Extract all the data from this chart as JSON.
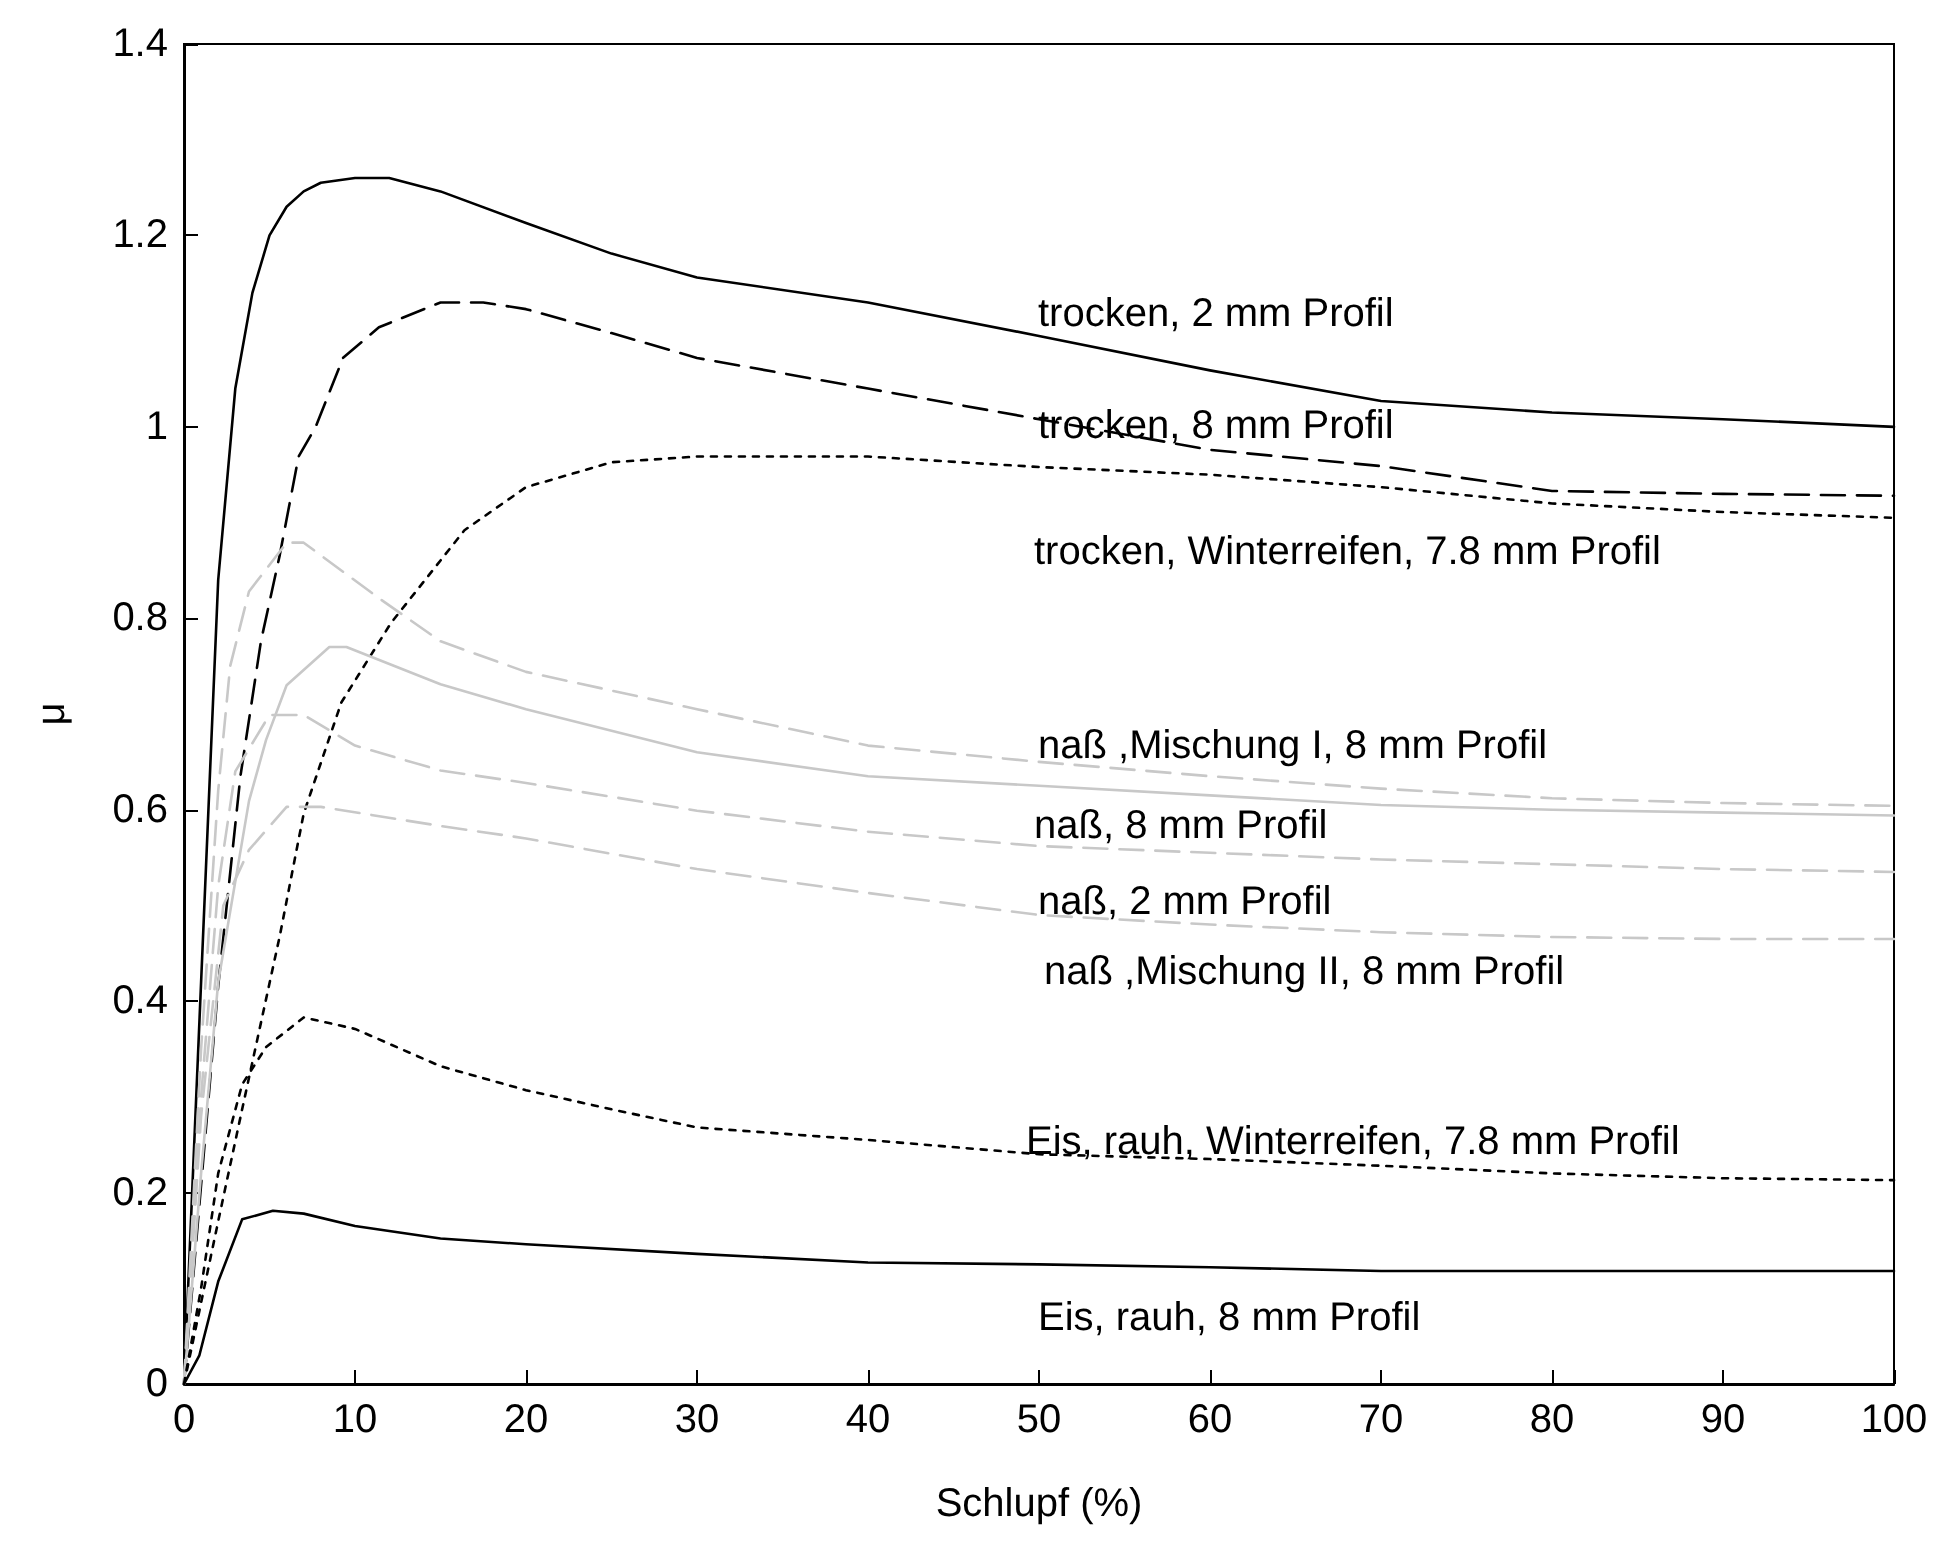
{
  "chart_data": {
    "type": "line",
    "xlabel": "Schlupf (%)",
    "ylabel": "μ",
    "xlim": [
      0,
      100
    ],
    "xticks": [
      0,
      10,
      20,
      30,
      40,
      50,
      60,
      70,
      80,
      90,
      100
    ],
    "ylim": [
      0,
      1.4
    ],
    "yticks": [
      0,
      0.2,
      0.4,
      0.6,
      0.8,
      1,
      1.2,
      1.4
    ],
    "grid": false,
    "marker": "none",
    "series": [
      {
        "color": "#000000",
        "line_style": "solid",
        "x": [
          0,
          1,
          2,
          3,
          4,
          5,
          6,
          7,
          8,
          10,
          12,
          15,
          20,
          25,
          30,
          40,
          50,
          60,
          70,
          80,
          90,
          100
        ],
        "values": [
          0,
          0.42,
          0.84,
          1.04,
          1.14,
          1.2,
          1.23,
          1.246,
          1.255,
          1.26,
          1.26,
          1.246,
          1.213,
          1.181,
          1.156,
          1.13,
          1.095,
          1.059,
          1.027,
          1.015,
          1.008,
          1.0
        ]
      },
      {
        "color": "#000000",
        "line_style": "dashed",
        "x": [
          0,
          2,
          3.3,
          4.5,
          5.6,
          6.7,
          7.7,
          9.3,
          11.4,
          15,
          17.5,
          20,
          25,
          30,
          40,
          50,
          60,
          70,
          80,
          90,
          100
        ],
        "values": [
          0,
          0.416,
          0.635,
          0.776,
          0.866,
          0.969,
          1.0,
          1.072,
          1.104,
          1.13,
          1.13,
          1.123,
          1.098,
          1.072,
          1.04,
          1.008,
          0.976,
          0.959,
          0.933,
          0.93,
          0.928
        ]
      },
      {
        "color": "#000000",
        "line_style": "dotted",
        "x": [
          0,
          2,
          3.4,
          5.6,
          7,
          9.2,
          12.1,
          16.4,
          20,
          25,
          30,
          40,
          50,
          60,
          70,
          80,
          90,
          100
        ],
        "values": [
          0,
          0.17,
          0.287,
          0.468,
          0.596,
          0.712,
          0.795,
          0.892,
          0.937,
          0.963,
          0.969,
          0.969,
          0.958,
          0.95,
          0.937,
          0.92,
          0.911,
          0.905
        ]
      },
      {
        "color": "#c8c8c8",
        "line_style": "dashed",
        "x": [
          0,
          1,
          2,
          2.7,
          3.8,
          6,
          7,
          11.4,
          15,
          20,
          30,
          40,
          50,
          60,
          70,
          80,
          90,
          100
        ],
        "values": [
          0,
          0.35,
          0.62,
          0.75,
          0.828,
          0.879,
          0.879,
          0.821,
          0.776,
          0.744,
          0.705,
          0.667,
          0.65,
          0.635,
          0.622,
          0.612,
          0.607,
          0.604
        ]
      },
      {
        "color": "#c8c8c8",
        "line_style": "solid",
        "x": [
          0,
          1,
          2,
          3.8,
          4.8,
          6,
          8.5,
          9.5,
          15,
          20,
          30,
          40,
          50,
          60,
          70,
          80,
          90,
          100
        ],
        "values": [
          0,
          0.22,
          0.42,
          0.609,
          0.673,
          0.73,
          0.77,
          0.77,
          0.731,
          0.705,
          0.66,
          0.635,
          0.625,
          0.615,
          0.605,
          0.6,
          0.597,
          0.594
        ]
      },
      {
        "color": "#c8c8c8",
        "line_style": "dashed",
        "x": [
          0,
          1,
          2,
          3,
          5,
          7,
          10,
          15,
          20,
          30,
          40,
          50,
          60,
          70,
          80,
          90,
          100
        ],
        "values": [
          0,
          0.3,
          0.52,
          0.64,
          0.699,
          0.699,
          0.667,
          0.641,
          0.628,
          0.599,
          0.577,
          0.562,
          0.555,
          0.548,
          0.543,
          0.538,
          0.535
        ]
      },
      {
        "color": "#c8c8c8",
        "line_style": "dashed",
        "x": [
          0,
          1,
          2.3,
          3.8,
          6,
          8,
          15,
          20,
          30,
          40,
          50,
          60,
          70,
          80,
          90,
          100
        ],
        "values": [
          0,
          0.28,
          0.5,
          0.558,
          0.603,
          0.603,
          0.583,
          0.57,
          0.538,
          0.513,
          0.49,
          0.48,
          0.472,
          0.467,
          0.465,
          0.465
        ]
      },
      {
        "color": "#000000",
        "line_style": "dotted",
        "x": [
          0,
          1,
          2,
          3.4,
          4.8,
          7,
          10,
          15,
          20,
          25,
          30,
          40,
          50,
          60,
          70,
          80,
          90,
          100
        ],
        "values": [
          0,
          0.1,
          0.22,
          0.313,
          0.352,
          0.383,
          0.371,
          0.332,
          0.307,
          0.287,
          0.268,
          0.255,
          0.24,
          0.235,
          0.228,
          0.22,
          0.215,
          0.213
        ]
      },
      {
        "color": "#000000",
        "line_style": "solid",
        "x": [
          0,
          0.9,
          2,
          3.4,
          5.2,
          7,
          10,
          15,
          20,
          30,
          40,
          50,
          60,
          70,
          80,
          90,
          100
        ],
        "values": [
          0,
          0.03,
          0.107,
          0.172,
          0.181,
          0.178,
          0.165,
          0.152,
          0.146,
          0.136,
          0.127,
          0.125,
          0.122,
          0.118,
          0.118,
          0.118,
          0.118
        ]
      }
    ],
    "annotations": [
      "trocken, 2 mm Profil",
      "trocken, 8 mm Profil",
      "trocken, Winterreifen, 7.8 mm Profil",
      "naß ,Mischung I, 8 mm Profil",
      "naß, 8 mm Profil",
      "naß, 2 mm Profil",
      "naß ,Mischung II, 8 mm Profil",
      "Eis, rauh, Winterreifen, 7.8 mm Profil",
      "Eis, rauh, 8 mm Profil"
    ]
  }
}
